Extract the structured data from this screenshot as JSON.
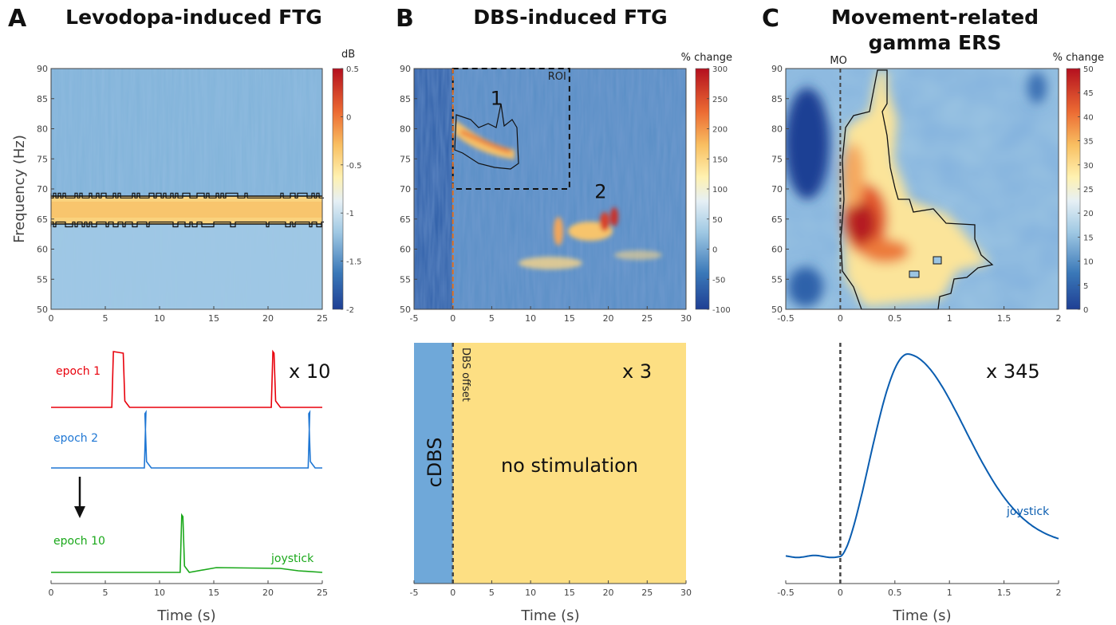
{
  "panels": {
    "A": {
      "letter": "A",
      "title": "Levodopa-induced FTG"
    },
    "B": {
      "letter": "B",
      "title": "DBS-induced FTG"
    },
    "C": {
      "letter": "C",
      "title_line1": "Movement-related",
      "title_line2": "gamma ERS"
    }
  },
  "colors": {
    "red": "#e8000b",
    "blue": "#1f77d4",
    "green": "#1aa81a",
    "navy": "#0a5db0",
    "cdbs_fill": "#6fa8d9",
    "nostim_fill": "#fddf83"
  },
  "chart_data": [
    {
      "id": "A_spectrogram",
      "type": "heatmap",
      "ylabel": "Frequency (Hz)",
      "xlim": [
        0,
        25
      ],
      "ylim": [
        50,
        90
      ],
      "xticks": [
        "0",
        "5",
        "10",
        "15",
        "20",
        "25"
      ],
      "yticks": [
        "50",
        "55",
        "60",
        "65",
        "70",
        "75",
        "80",
        "85",
        "90"
      ],
      "colorbar": {
        "label": "dB",
        "range": [
          -2,
          0.5
        ],
        "ticks": [
          "0.5",
          "0",
          "-0.5",
          "-1",
          "-1.5",
          "-2"
        ]
      },
      "band_hz": [
        64.5,
        68.5
      ]
    },
    {
      "id": "A_traces",
      "type": "line",
      "xlabel": "Time (s)",
      "xlim": [
        0,
        25
      ],
      "xticks": [
        "0",
        "5",
        "10",
        "15",
        "20",
        "25"
      ],
      "multiplier": "x 10",
      "series": [
        {
          "name": "epoch 1",
          "color": "red",
          "pulses": [
            [
              5.6,
              6.8
            ],
            [
              20.3,
              20.7
            ]
          ]
        },
        {
          "name": "epoch 2",
          "color": "blue",
          "pulses": [
            [
              8.6,
              8.8
            ],
            [
              23.7,
              23.9
            ]
          ]
        },
        {
          "name": "epoch 10",
          "color": "green",
          "pulses": [
            [
              11.9,
              12.3
            ]
          ]
        }
      ],
      "trace_label": "joystick"
    },
    {
      "id": "B_spectrogram",
      "type": "heatmap",
      "xlim": [
        -5,
        30
      ],
      "ylim": [
        50,
        90
      ],
      "xticks": [
        "-5",
        "0",
        "5",
        "10",
        "15",
        "20",
        "25",
        "30"
      ],
      "yticks": [
        "50",
        "55",
        "60",
        "65",
        "70",
        "75",
        "80",
        "85",
        "90"
      ],
      "colorbar": {
        "label": "% change",
        "range": [
          -100,
          300
        ],
        "ticks": [
          "300",
          "250",
          "200",
          "150",
          "100",
          "50",
          "0",
          "-50",
          "-100"
        ]
      },
      "roi": {
        "label": "ROI",
        "x": [
          0,
          15
        ],
        "y": [
          70,
          90
        ]
      },
      "annotations": [
        {
          "text": "1",
          "x": 5,
          "y": 84
        },
        {
          "text": "2",
          "x": 19,
          "y": 68.5
        }
      ]
    },
    {
      "id": "B_timeline",
      "type": "bar",
      "xlabel": "Time (s)",
      "xlim": [
        -5,
        30
      ],
      "xticks": [
        "-5",
        "0",
        "5",
        "10",
        "15",
        "20",
        "25",
        "30"
      ],
      "multiplier": "x 3",
      "regions": [
        {
          "label": "cDBS",
          "x": [
            -5,
            0
          ]
        },
        {
          "label": "no stimulation",
          "x": [
            0,
            30
          ]
        }
      ],
      "marker": "DBS offset"
    },
    {
      "id": "C_spectrogram",
      "type": "heatmap",
      "xlim": [
        -0.5,
        2
      ],
      "ylim": [
        50,
        90
      ],
      "xticks": [
        "-0.5",
        "0",
        "0.5",
        "1",
        "1.5",
        "2"
      ],
      "yticks": [
        "50",
        "55",
        "60",
        "65",
        "70",
        "75",
        "80",
        "85",
        "90"
      ],
      "colorbar": {
        "label": "% change",
        "range": [
          0,
          50
        ],
        "ticks": [
          "50",
          "45",
          "40",
          "35",
          "30",
          "25",
          "20",
          "15",
          "10",
          "5",
          "0"
        ]
      },
      "marker": "MO"
    },
    {
      "id": "C_trace",
      "type": "line",
      "xlabel": "Time (s)",
      "xlim": [
        -0.5,
        2
      ],
      "xticks": [
        "-0.5",
        "0",
        "0.5",
        "1",
        "1.5",
        "2"
      ],
      "multiplier": "x 345",
      "series": [
        {
          "name": "joystick",
          "peak_x": 0.62
        }
      ]
    }
  ]
}
